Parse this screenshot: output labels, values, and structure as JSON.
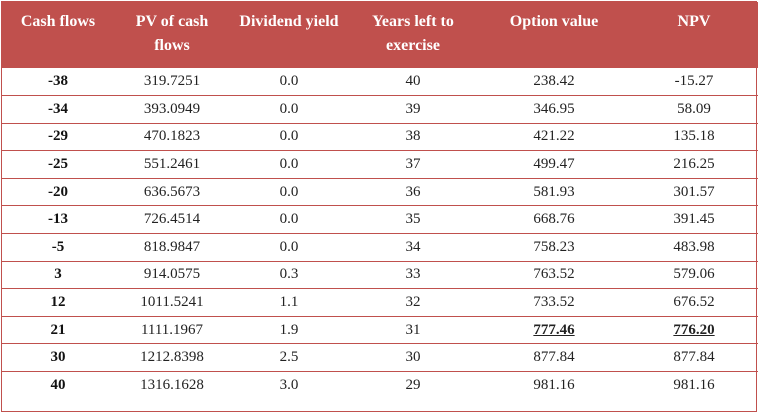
{
  "headers": [
    "Cash flows",
    "PV of cash flows",
    "Dividend yield",
    "Years left to exercise",
    "Option value",
    "NPV"
  ],
  "rows": [
    {
      "cash_flows": "-38",
      "pv": "319.7251",
      "dividend_yield": "0.0",
      "years_left": "40",
      "option_value": "238.42",
      "npv": "-15.27"
    },
    {
      "cash_flows": "-34",
      "pv": "393.0949",
      "dividend_yield": "0.0",
      "years_left": "39",
      "option_value": "346.95",
      "npv": "58.09"
    },
    {
      "cash_flows": "-29",
      "pv": "470.1823",
      "dividend_yield": "0.0",
      "years_left": "38",
      "option_value": "421.22",
      "npv": "135.18"
    },
    {
      "cash_flows": "-25",
      "pv": "551.2461",
      "dividend_yield": "0.0",
      "years_left": "37",
      "option_value": "499.47",
      "npv": "216.25"
    },
    {
      "cash_flows": "-20",
      "pv": "636.5673",
      "dividend_yield": "0.0",
      "years_left": "36",
      "option_value": "581.93",
      "npv": "301.57"
    },
    {
      "cash_flows": "-13",
      "pv": "726.4514",
      "dividend_yield": "0.0",
      "years_left": "35",
      "option_value": "668.76",
      "npv": "391.45"
    },
    {
      "cash_flows": "-5",
      "pv": "818.9847",
      "dividend_yield": "0.0",
      "years_left": "34",
      "option_value": "758.23",
      "npv": "483.98"
    },
    {
      "cash_flows": "3",
      "pv": "914.0575",
      "dividend_yield": "0.3",
      "years_left": "33",
      "option_value": "763.52",
      "npv": "579.06"
    },
    {
      "cash_flows": "12",
      "pv": "1011.5241",
      "dividend_yield": "1.1",
      "years_left": "32",
      "option_value": "733.52",
      "npv": "676.52"
    },
    {
      "cash_flows": "21",
      "pv": "1111.1967",
      "dividend_yield": "1.9",
      "years_left": "31",
      "option_value": "777.46",
      "npv": "776.20",
      "highlight": true
    },
    {
      "cash_flows": "30",
      "pv": "1212.8398",
      "dividend_yield": "2.5",
      "years_left": "30",
      "option_value": "877.84",
      "npv": "877.84"
    },
    {
      "cash_flows": "40",
      "pv": "1316.1628",
      "dividend_yield": "3.0",
      "years_left": "29",
      "option_value": "981.16",
      "npv": "981.16"
    }
  ],
  "colors": {
    "header_bg": "#c0504d",
    "header_text": "#ffffff",
    "row_divider": "#c0504d"
  }
}
